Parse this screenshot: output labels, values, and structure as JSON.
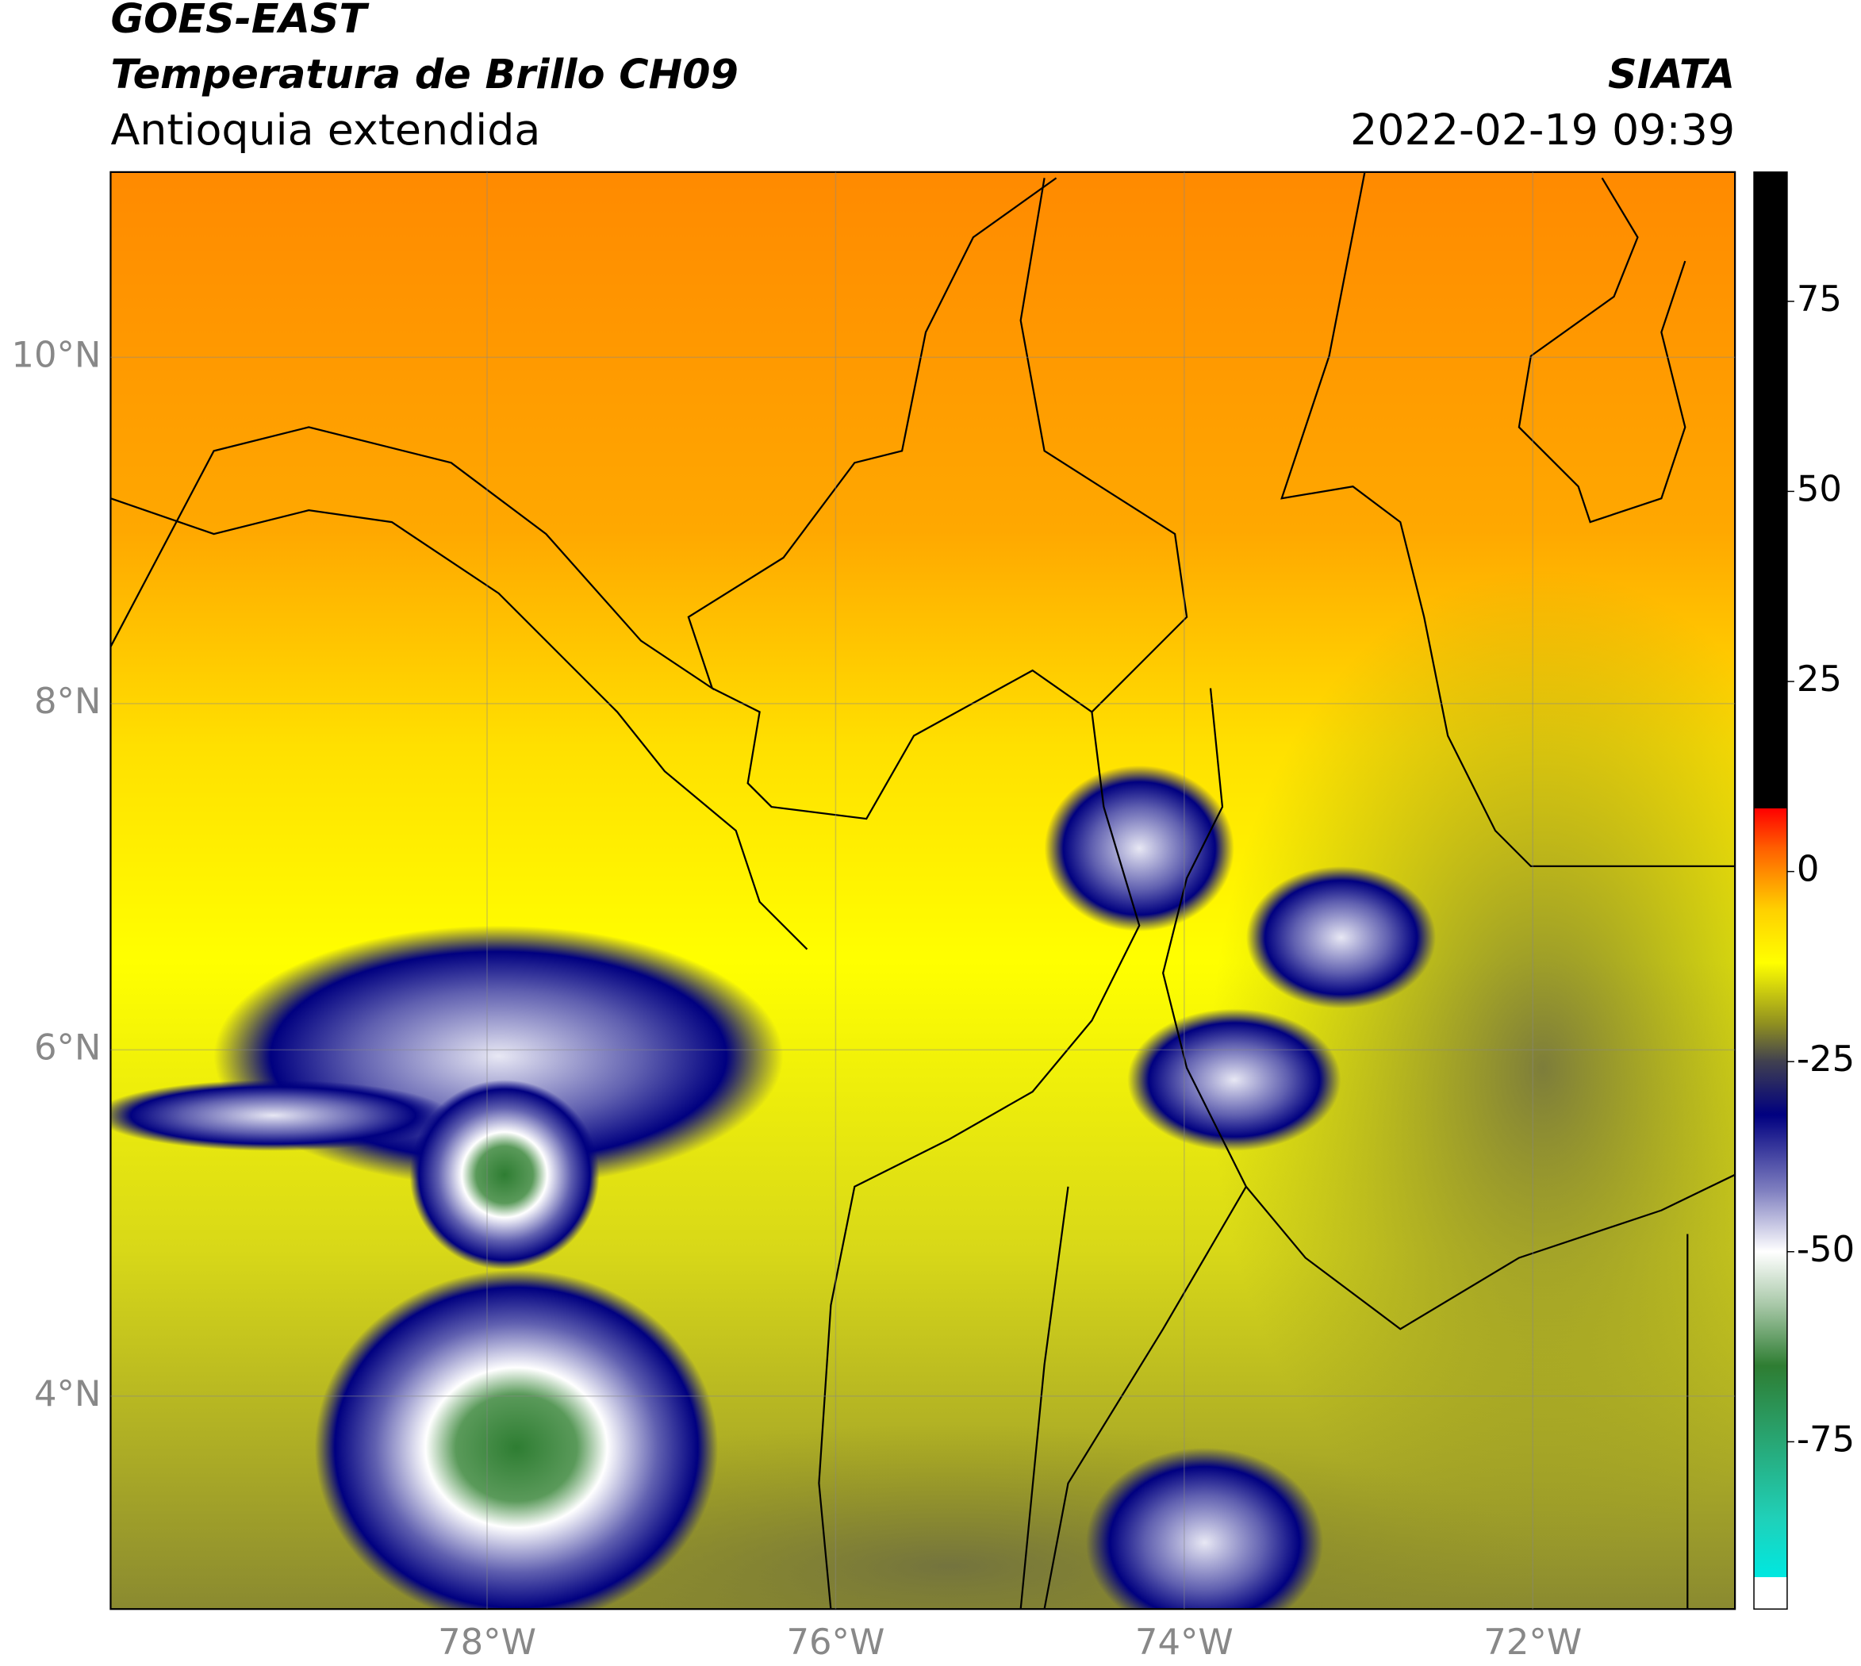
{
  "header": {
    "title1": "GOES-EAST",
    "title2": "Temperatura de Brillo CH09",
    "subtitle": "Antioquia extendida",
    "org": "SIATA",
    "datetime": "2022-02-19 09:39"
  },
  "map": {
    "lon_lim": [
      -80.16,
      -70.84
    ],
    "lat_lim": [
      2.77,
      11.07
    ],
    "lat_ticks": [
      {
        "value": 10,
        "label": "10°N"
      },
      {
        "value": 8,
        "label": "8°N"
      },
      {
        "value": 6,
        "label": "6°N"
      },
      {
        "value": 4,
        "label": "4°N"
      }
    ],
    "lon_ticks": [
      {
        "value": -78,
        "label": "78°W"
      },
      {
        "value": -76,
        "label": "76°W"
      },
      {
        "value": -74,
        "label": "74°W"
      },
      {
        "value": -72,
        "label": "72°W"
      }
    ],
    "grid": true
  },
  "colorbar": {
    "lim": [
      -97,
      92
    ],
    "ticks": [
      75,
      50,
      25,
      0,
      -25,
      -50,
      -75
    ],
    "stops": [
      {
        "value": -97,
        "color": "#ffffff"
      },
      {
        "value": -92.8,
        "color": "#ffffff"
      },
      {
        "value": -92.8,
        "color": "#00e8e0"
      },
      {
        "value": -85,
        "color": "#20d0b8"
      },
      {
        "value": -72,
        "color": "#2a9a60"
      },
      {
        "value": -65,
        "color": "#2e7d32"
      },
      {
        "value": -57,
        "color": "#a8c8a8"
      },
      {
        "value": -50,
        "color": "#ffffff"
      },
      {
        "value": -42,
        "color": "#8080c0"
      },
      {
        "value": -32,
        "color": "#000080"
      },
      {
        "value": -25,
        "color": "#404050"
      },
      {
        "value": -20,
        "color": "#909020"
      },
      {
        "value": -12,
        "color": "#ffff00"
      },
      {
        "value": -5,
        "color": "#ffd000"
      },
      {
        "value": 3,
        "color": "#ff6000"
      },
      {
        "value": 8.3,
        "color": "#ff0000"
      },
      {
        "value": 8.3,
        "color": "#000000"
      },
      {
        "value": 92,
        "color": "#000000"
      }
    ]
  }
}
